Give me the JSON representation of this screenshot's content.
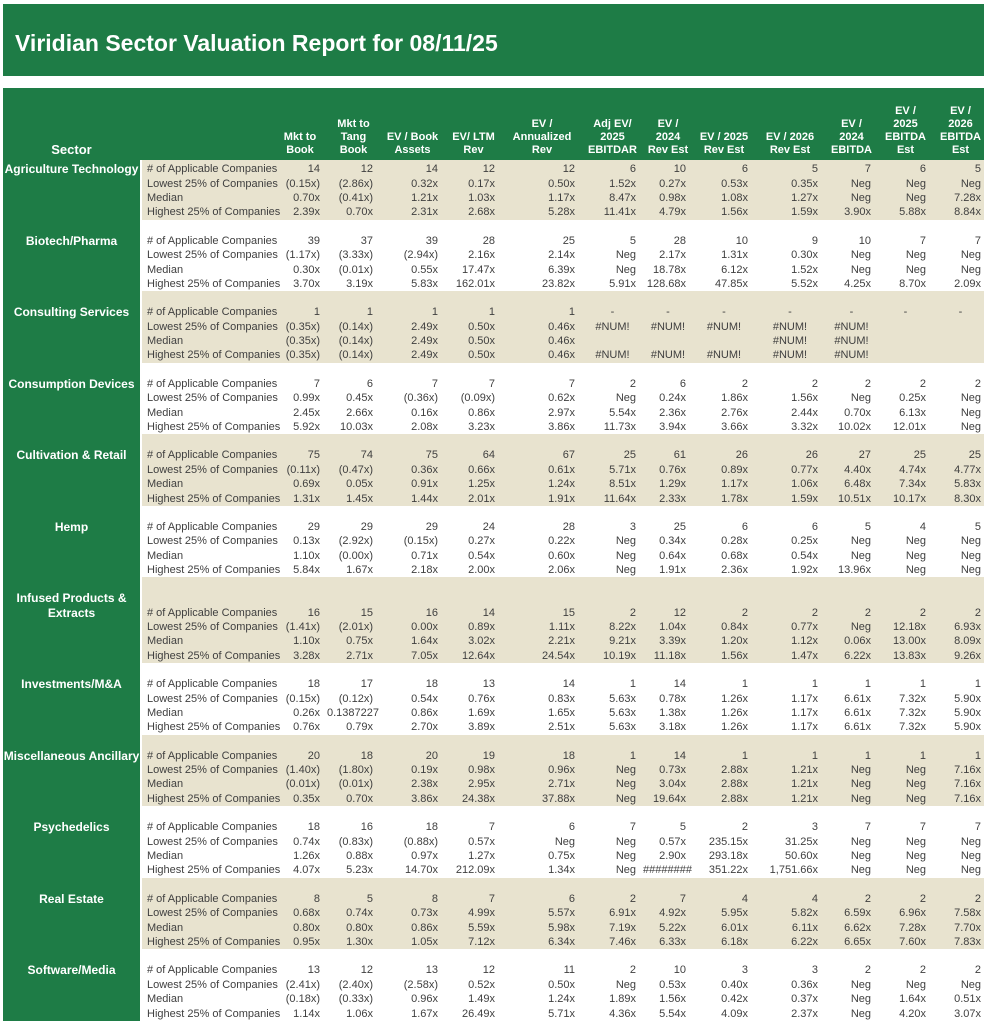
{
  "title": "Viridian Sector Valuation Report for 08/11/25",
  "colors": {
    "green": "#1e7c46",
    "beige": "#e8e3cf",
    "text": "#3f3f3f",
    "header_text": "#ffffff"
  },
  "table": {
    "sector_header": "Sector",
    "columns": [
      "Mkt to\nBook",
      "Mkt to\nTang Book",
      "EV / Book\nAssets",
      "EV/ LTM\nRev",
      "EV /\nAnnualized\nRev",
      "Adj EV/\n2025\nEBITDAR",
      "EV /\n2024\nRev Est",
      "EV /  2025\nRev Est",
      "EV /  2026\nRev Est",
      "EV /\n2024\nEBITDA",
      "EV /\n2025\nEBITDA\nEst",
      "EV /\n2026\nEBITDA\nEst"
    ],
    "row_labels": [
      "# of Applicable Companies",
      "Lowest 25% of Companies",
      "Median",
      "Highest 25% of Companies"
    ],
    "sectors": [
      {
        "name": "Agriculture Technology",
        "rows": [
          [
            "14",
            "12",
            "14",
            "12",
            "12",
            "6",
            "10",
            "6",
            "5",
            "7",
            "6",
            "5"
          ],
          [
            "(0.15x)",
            "(2.86x)",
            "0.32x",
            "0.17x",
            "0.50x",
            "1.52x",
            "0.27x",
            "0.53x",
            "0.35x",
            "Neg",
            "Neg",
            "Neg"
          ],
          [
            "0.70x",
            "(0.41x)",
            "1.21x",
            "1.03x",
            "1.17x",
            "8.47x",
            "0.98x",
            "1.08x",
            "1.27x",
            "Neg",
            "Neg",
            "7.28x"
          ],
          [
            "2.39x",
            "0.70x",
            "2.31x",
            "2.68x",
            "5.28x",
            "11.41x",
            "4.79x",
            "1.56x",
            "1.59x",
            "3.90x",
            "5.88x",
            "8.84x"
          ]
        ]
      },
      {
        "name": "Biotech/Pharma",
        "rows": [
          [
            "39",
            "37",
            "39",
            "28",
            "25",
            "5",
            "28",
            "10",
            "9",
            "10",
            "7",
            "7"
          ],
          [
            "(1.17x)",
            "(3.33x)",
            "(2.94x)",
            "2.16x",
            "2.14x",
            "Neg",
            "2.17x",
            "1.31x",
            "0.30x",
            "Neg",
            "Neg",
            "Neg"
          ],
          [
            "0.30x",
            "(0.01x)",
            "0.55x",
            "17.47x",
            "6.39x",
            "Neg",
            "18.78x",
            "6.12x",
            "1.52x",
            "Neg",
            "Neg",
            "Neg"
          ],
          [
            "3.70x",
            "3.19x",
            "5.83x",
            "162.01x",
            "23.82x",
            "5.91x",
            "128.68x",
            "47.85x",
            "5.52x",
            "4.25x",
            "8.70x",
            "2.09x"
          ]
        ]
      },
      {
        "name": "Consulting Services",
        "rows": [
          [
            "1",
            "1",
            "1",
            "1",
            "1",
            "-",
            "-",
            "-",
            "-",
            "-",
            "-",
            "-"
          ],
          [
            "(0.35x)",
            "(0.14x)",
            "2.49x",
            "0.50x",
            "0.46x",
            "#NUM!",
            "#NUM!",
            "#NUM!",
            "#NUM!",
            "#NUM!",
            "",
            ""
          ],
          [
            "(0.35x)",
            "(0.14x)",
            "2.49x",
            "0.50x",
            "0.46x",
            "",
            "",
            "",
            "#NUM!",
            "#NUM!",
            "",
            ""
          ],
          [
            "(0.35x)",
            "(0.14x)",
            "2.49x",
            "0.50x",
            "0.46x",
            "#NUM!",
            "#NUM!",
            "#NUM!",
            "#NUM!",
            "#NUM!",
            "",
            ""
          ]
        ]
      },
      {
        "name": "Consumption Devices",
        "rows": [
          [
            "7",
            "6",
            "7",
            "7",
            "7",
            "2",
            "6",
            "2",
            "2",
            "2",
            "2",
            "2"
          ],
          [
            "0.99x",
            "0.45x",
            "(0.36x)",
            "(0.09x)",
            "0.62x",
            "Neg",
            "0.24x",
            "1.86x",
            "1.56x",
            "Neg",
            "0.25x",
            "Neg"
          ],
          [
            "2.45x",
            "2.66x",
            "0.16x",
            "0.86x",
            "2.97x",
            "5.54x",
            "2.36x",
            "2.76x",
            "2.44x",
            "0.70x",
            "6.13x",
            "Neg"
          ],
          [
            "5.92x",
            "10.03x",
            "2.08x",
            "3.23x",
            "3.86x",
            "11.73x",
            "3.94x",
            "3.66x",
            "3.32x",
            "10.02x",
            "12.01x",
            "Neg"
          ]
        ]
      },
      {
        "name": "Cultivation & Retail",
        "rows": [
          [
            "75",
            "74",
            "75",
            "64",
            "67",
            "25",
            "61",
            "26",
            "26",
            "27",
            "25",
            "25"
          ],
          [
            "(0.11x)",
            "(0.47x)",
            "0.36x",
            "0.66x",
            "0.61x",
            "5.71x",
            "0.76x",
            "0.89x",
            "0.77x",
            "4.40x",
            "4.74x",
            "4.77x"
          ],
          [
            "0.69x",
            "0.05x",
            "0.91x",
            "1.25x",
            "1.24x",
            "8.51x",
            "1.29x",
            "1.17x",
            "1.06x",
            "6.48x",
            "7.34x",
            "5.83x"
          ],
          [
            "1.31x",
            "1.45x",
            "1.44x",
            "2.01x",
            "1.91x",
            "11.64x",
            "2.33x",
            "1.78x",
            "1.59x",
            "10.51x",
            "10.17x",
            "8.30x"
          ]
        ]
      },
      {
        "name": "Hemp",
        "rows": [
          [
            "29",
            "29",
            "29",
            "24",
            "28",
            "3",
            "25",
            "6",
            "6",
            "5",
            "4",
            "5"
          ],
          [
            "0.13x",
            "(2.92x)",
            "(0.15x)",
            "0.27x",
            "0.22x",
            "Neg",
            "0.34x",
            "0.28x",
            "0.25x",
            "Neg",
            "Neg",
            "Neg"
          ],
          [
            "1.10x",
            "(0.00x)",
            "0.71x",
            "0.54x",
            "0.60x",
            "Neg",
            "0.64x",
            "0.68x",
            "0.54x",
            "Neg",
            "Neg",
            "Neg"
          ],
          [
            "5.84x",
            "1.67x",
            "2.18x",
            "2.00x",
            "2.06x",
            "Neg",
            "1.91x",
            "2.36x",
            "1.92x",
            "13.96x",
            "Neg",
            "Neg"
          ]
        ]
      },
      {
        "name": "Infused Products &\nExtracts",
        "tall": true,
        "rows": [
          [
            "16",
            "15",
            "16",
            "14",
            "15",
            "2",
            "12",
            "2",
            "2",
            "2",
            "2",
            "2"
          ],
          [
            "(1.41x)",
            "(2.01x)",
            "0.00x",
            "0.89x",
            "1.11x",
            "8.22x",
            "1.04x",
            "0.84x",
            "0.77x",
            "Neg",
            "12.18x",
            "6.93x"
          ],
          [
            "1.10x",
            "0.75x",
            "1.64x",
            "3.02x",
            "2.21x",
            "9.21x",
            "3.39x",
            "1.20x",
            "1.12x",
            "0.06x",
            "13.00x",
            "8.09x"
          ],
          [
            "3.28x",
            "2.71x",
            "7.05x",
            "12.64x",
            "24.54x",
            "10.19x",
            "11.18x",
            "1.56x",
            "1.47x",
            "6.22x",
            "13.83x",
            "9.26x"
          ]
        ]
      },
      {
        "name": "Investments/M&A",
        "rows": [
          [
            "18",
            "17",
            "18",
            "13",
            "14",
            "1",
            "14",
            "1",
            "1",
            "1",
            "1",
            "1"
          ],
          [
            "(0.15x)",
            "(0.12x)",
            "0.54x",
            "0.76x",
            "0.83x",
            "5.63x",
            "0.78x",
            "1.26x",
            "1.17x",
            "6.61x",
            "7.32x",
            "5.90x"
          ],
          [
            "0.26x",
            "0.1387227",
            "0.86x",
            "1.69x",
            "1.65x",
            "5.63x",
            "1.38x",
            "1.26x",
            "1.17x",
            "6.61x",
            "7.32x",
            "5.90x"
          ],
          [
            "0.76x",
            "0.79x",
            "2.70x",
            "3.89x",
            "2.51x",
            "5.63x",
            "3.18x",
            "1.26x",
            "1.17x",
            "6.61x",
            "7.32x",
            "5.90x"
          ]
        ]
      },
      {
        "name": "Miscellaneous Ancillary",
        "rows": [
          [
            "20",
            "18",
            "20",
            "19",
            "18",
            "1",
            "14",
            "1",
            "1",
            "1",
            "1",
            "1"
          ],
          [
            "(1.40x)",
            "(1.80x)",
            "0.19x",
            "0.98x",
            "0.96x",
            "Neg",
            "0.73x",
            "2.88x",
            "1.21x",
            "Neg",
            "Neg",
            "7.16x"
          ],
          [
            "(0.01x)",
            "(0.01x)",
            "2.38x",
            "2.95x",
            "2.71x",
            "Neg",
            "3.04x",
            "2.88x",
            "1.21x",
            "Neg",
            "Neg",
            "7.16x"
          ],
          [
            "0.35x",
            "0.70x",
            "3.86x",
            "24.38x",
            "37.88x",
            "Neg",
            "19.64x",
            "2.88x",
            "1.21x",
            "Neg",
            "Neg",
            "7.16x"
          ]
        ]
      },
      {
        "name": "Psychedelics",
        "rows": [
          [
            "18",
            "16",
            "18",
            "7",
            "6",
            "7",
            "5",
            "2",
            "3",
            "7",
            "7",
            "7"
          ],
          [
            "0.74x",
            "(0.83x)",
            "(0.88x)",
            "0.57x",
            "Neg",
            "Neg",
            "0.57x",
            "235.15x",
            "31.25x",
            "Neg",
            "Neg",
            "Neg"
          ],
          [
            "1.26x",
            "0.88x",
            "0.97x",
            "1.27x",
            "0.75x",
            "Neg",
            "2.90x",
            "293.18x",
            "50.60x",
            "Neg",
            "Neg",
            "Neg"
          ],
          [
            "4.07x",
            "5.23x",
            "14.70x",
            "212.09x",
            "1.34x",
            "Neg",
            "########",
            "351.22x",
            "1,751.66x",
            "Neg",
            "Neg",
            "Neg"
          ]
        ]
      },
      {
        "name": "Real Estate",
        "rows": [
          [
            "8",
            "5",
            "8",
            "7",
            "6",
            "2",
            "7",
            "4",
            "4",
            "2",
            "2",
            "2"
          ],
          [
            "0.68x",
            "0.74x",
            "0.73x",
            "4.99x",
            "5.57x",
            "6.91x",
            "4.92x",
            "5.95x",
            "5.82x",
            "6.59x",
            "6.96x",
            "7.58x"
          ],
          [
            "0.80x",
            "0.80x",
            "0.86x",
            "5.59x",
            "5.98x",
            "7.19x",
            "5.22x",
            "6.01x",
            "6.11x",
            "6.62x",
            "7.28x",
            "7.70x"
          ],
          [
            "0.95x",
            "1.30x",
            "1.05x",
            "7.12x",
            "6.34x",
            "7.46x",
            "6.33x",
            "6.18x",
            "6.22x",
            "6.65x",
            "7.60x",
            "7.83x"
          ]
        ]
      },
      {
        "name": "Software/Media",
        "rows": [
          [
            "13",
            "12",
            "13",
            "12",
            "11",
            "2",
            "10",
            "3",
            "3",
            "2",
            "2",
            "2"
          ],
          [
            "(2.41x)",
            "(2.40x)",
            "(2.58x)",
            "0.52x",
            "0.50x",
            "Neg",
            "0.53x",
            "0.40x",
            "0.36x",
            "Neg",
            "Neg",
            "Neg"
          ],
          [
            "(0.18x)",
            "(0.33x)",
            "0.96x",
            "1.49x",
            "1.24x",
            "1.89x",
            "1.56x",
            "0.42x",
            "0.37x",
            "Neg",
            "1.64x",
            "0.51x"
          ],
          [
            "1.14x",
            "1.06x",
            "1.67x",
            "26.49x",
            "5.71x",
            "4.36x",
            "5.54x",
            "4.09x",
            "2.37x",
            "Neg",
            "4.20x",
            "3.07x"
          ]
        ]
      }
    ]
  }
}
